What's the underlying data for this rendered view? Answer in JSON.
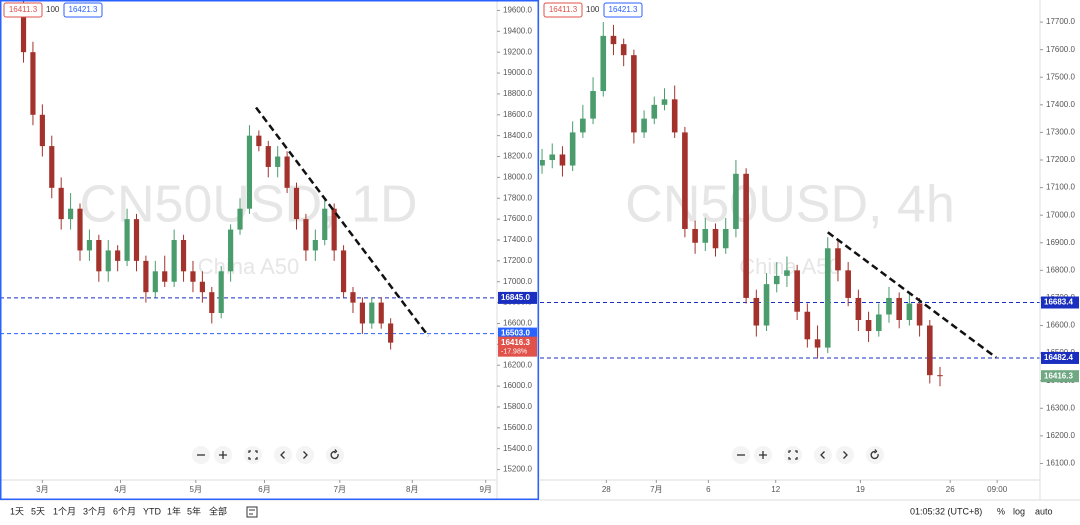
{
  "chart_data": [
    {
      "type": "candlestick",
      "watermark": "CN50USD, 1D",
      "watermark_sub": "China A50",
      "header_values": [
        16411.3,
        100,
        16421.3
      ],
      "up_color": "#4a9c6d",
      "down_color": "#a3322c",
      "xlim": [
        -2.5,
        50.3
      ],
      "ylim": [
        15100,
        19700
      ],
      "xticks": [
        {
          "value": 2,
          "label": "3月"
        },
        {
          "value": 10.3,
          "label": "4月"
        },
        {
          "value": 18.3,
          "label": "5月"
        },
        {
          "value": 25.6,
          "label": "6月"
        },
        {
          "value": 33.6,
          "label": "7月"
        },
        {
          "value": 41.3,
          "label": "8月"
        },
        {
          "value": 49.1,
          "label": "9月"
        }
      ],
      "yticks": [
        {
          "value": 15200,
          "label": "15200.0"
        },
        {
          "value": 15400,
          "label": "15400.0"
        },
        {
          "value": 15600,
          "label": "15600.0"
        },
        {
          "value": 15800,
          "label": "15800.0"
        },
        {
          "value": 16000,
          "label": "16000.0"
        },
        {
          "value": 16200,
          "label": "16200.0"
        },
        {
          "value": 16400,
          "label": "16400.0"
        },
        {
          "value": 16600,
          "label": "16600.0"
        },
        {
          "value": 16800,
          "label": "16800.0"
        },
        {
          "value": 17000,
          "label": "17000.0"
        },
        {
          "value": 17200,
          "label": "17200.0"
        },
        {
          "value": 17400,
          "label": "17400.0"
        },
        {
          "value": 17600,
          "label": "17600.0"
        },
        {
          "value": 17800,
          "label": "17800.0"
        },
        {
          "value": 18000,
          "label": "18000.0"
        },
        {
          "value": 18200,
          "label": "18200.0"
        },
        {
          "value": 18400,
          "label": "18400.0"
        },
        {
          "value": 18600,
          "label": "18600.0"
        },
        {
          "value": 18800,
          "label": "18800.0"
        },
        {
          "value": 19000,
          "label": "19000.0"
        },
        {
          "value": 19200,
          "label": "19200.0"
        },
        {
          "value": 19400,
          "label": "19400.0"
        },
        {
          "value": 19600,
          "label": "19600.0"
        }
      ],
      "open": [
        19650,
        19200,
        18600,
        18300,
        17900,
        17600,
        17700,
        17300,
        17400,
        17100,
        17300,
        17200,
        17600,
        17200,
        16900,
        17100,
        17000,
        17400,
        17100,
        17000,
        16900,
        16700,
        17100,
        17500,
        17700,
        18400,
        18300,
        18100,
        18200,
        17900,
        17600,
        17300,
        17400,
        17700,
        17300,
        16900,
        16800,
        16600,
        16800,
        16600
      ],
      "high": [
        19700,
        19300,
        18700,
        18400,
        18000,
        17850,
        17750,
        17500,
        17450,
        17400,
        17350,
        17700,
        17650,
        17250,
        17200,
        17250,
        17500,
        17450,
        17200,
        17100,
        16950,
        17150,
        17550,
        17800,
        18500,
        18450,
        18350,
        18300,
        18250,
        17950,
        17650,
        17500,
        17800,
        17750,
        17350,
        16950,
        16850,
        16850,
        16850,
        16650
      ],
      "low": [
        19100,
        18500,
        18200,
        17800,
        17500,
        17500,
        17200,
        17200,
        17000,
        17000,
        17100,
        17150,
        17100,
        16800,
        16850,
        16950,
        16950,
        17000,
        16900,
        16800,
        16600,
        16650,
        17000,
        17450,
        17650,
        18250,
        18000,
        18000,
        17850,
        17500,
        17200,
        17200,
        17350,
        17200,
        16850,
        16700,
        16500,
        16550,
        16550,
        16350
      ],
      "close": [
        19200,
        18600,
        18300,
        17900,
        17600,
        17700,
        17300,
        17400,
        17100,
        17300,
        17200,
        17600,
        17200,
        16900,
        17100,
        17000,
        17400,
        17100,
        17000,
        16900,
        16700,
        17100,
        17500,
        17700,
        18400,
        18300,
        18100,
        18200,
        17900,
        17600,
        17300,
        17400,
        17700,
        17300,
        16900,
        16800,
        16600,
        16800,
        16600,
        16416.3
      ],
      "hlines": [
        {
          "value": 16845,
          "label": "16845.0",
          "color": "#1a2fbf"
        },
        {
          "value": 16503,
          "label": "16503.0",
          "color": "#2962ff"
        }
      ],
      "last": {
        "value": 16416.3,
        "label": "16416.3",
        "change": "-17.98%",
        "color": "#e0524a"
      },
      "trendline": {
        "x": [
          24.7,
          43
        ],
        "y": [
          18670,
          16480
        ]
      }
    },
    {
      "type": "candlestick",
      "watermark": "CN50USD, 4h",
      "watermark_sub": "China A50",
      "header_values": [
        16411.3,
        100,
        16421.3
      ],
      "up_color": "#4a9c6d",
      "down_color": "#a3322c",
      "xlim": [
        -0.2,
        48.8
      ],
      "ylim": [
        16040,
        17780
      ],
      "xticks": [
        {
          "value": 6.3,
          "label": "28"
        },
        {
          "value": 11.2,
          "label": "7月"
        },
        {
          "value": 16.3,
          "label": "6"
        },
        {
          "value": 22.9,
          "label": "12"
        },
        {
          "value": 31.2,
          "label": "19"
        },
        {
          "value": 40,
          "label": "26"
        },
        {
          "value": 44.6,
          "label": "09:00"
        }
      ],
      "yticks": [
        {
          "value": 16100,
          "label": "16100.0"
        },
        {
          "value": 16200,
          "label": "16200.0"
        },
        {
          "value": 16300,
          "label": "16300.0"
        },
        {
          "value": 16400,
          "label": "16400.0"
        },
        {
          "value": 16500,
          "label": "16500.0"
        },
        {
          "value": 16600,
          "label": "16600.0"
        },
        {
          "value": 16700,
          "label": "16700.0"
        },
        {
          "value": 16800,
          "label": "16800.0"
        },
        {
          "value": 16900,
          "label": "16900.0"
        },
        {
          "value": 17000,
          "label": "17000.0"
        },
        {
          "value": 17100,
          "label": "17100.0"
        },
        {
          "value": 17200,
          "label": "17200.0"
        },
        {
          "value": 17300,
          "label": "17300.0"
        },
        {
          "value": 17400,
          "label": "17400.0"
        },
        {
          "value": 17500,
          "label": "17500.0"
        },
        {
          "value": 17600,
          "label": "17600.0"
        },
        {
          "value": 17700,
          "label": "17700.0"
        }
      ],
      "open": [
        17180,
        17200,
        17220,
        17180,
        17300,
        17350,
        17450,
        17650,
        17620,
        17580,
        17300,
        17350,
        17400,
        17420,
        17300,
        16950,
        16900,
        16950,
        16880,
        16950,
        17150,
        16700,
        16600,
        16750,
        16780,
        16800,
        16650,
        16550,
        16520,
        16880,
        16800,
        16700,
        16620,
        16580,
        16640,
        16700,
        16620,
        16680,
        16600,
        16420
      ],
      "high": [
        17240,
        17260,
        17250,
        17340,
        17400,
        17500,
        17700,
        17690,
        17640,
        17600,
        17380,
        17430,
        17460,
        17470,
        17320,
        16980,
        16990,
        16970,
        16990,
        17200,
        17170,
        16730,
        16790,
        16830,
        16850,
        16820,
        16680,
        16600,
        16920,
        16910,
        16830,
        16730,
        16650,
        16680,
        16740,
        16720,
        16720,
        16700,
        16620,
        16450
      ],
      "low": [
        17150,
        17170,
        17140,
        17160,
        17280,
        17330,
        17430,
        17580,
        17540,
        17260,
        17280,
        17330,
        17380,
        17280,
        16920,
        16860,
        16870,
        16850,
        16860,
        16920,
        16680,
        16560,
        16580,
        16720,
        16740,
        16620,
        16520,
        16480,
        16500,
        16760,
        16670,
        16580,
        16540,
        16560,
        16610,
        16590,
        16600,
        16560,
        16390,
        16380
      ],
      "close": [
        17200,
        17220,
        17180,
        17300,
        17350,
        17450,
        17650,
        17620,
        17580,
        17300,
        17350,
        17400,
        17420,
        17300,
        16950,
        16900,
        16950,
        16880,
        16950,
        17150,
        16700,
        16600,
        16750,
        16780,
        16800,
        16650,
        16550,
        16520,
        16880,
        16800,
        16700,
        16620,
        16580,
        16640,
        16700,
        16620,
        16680,
        16600,
        16420,
        16416.3
      ],
      "hlines": [
        {
          "value": 16683.4,
          "label": "16683.4",
          "color": "#1a2fbf"
        },
        {
          "value": 16482.4,
          "label": "16482.4",
          "color": "#1a2fbf"
        }
      ],
      "last": {
        "value": 16416.3,
        "label": "16416.3",
        "color": "#6fa883"
      },
      "trendline": {
        "x": [
          28,
          44.5
        ],
        "y": [
          16938,
          16484
        ]
      }
    }
  ],
  "toolbar": {
    "ranges": [
      "1天",
      "5天",
      "1个月",
      "3个月",
      "6个月",
      "YTD",
      "1年",
      "5年",
      "全部"
    ],
    "time": "01:05:32 (UTC+8)",
    "options": [
      "%",
      "log",
      "auto"
    ]
  }
}
